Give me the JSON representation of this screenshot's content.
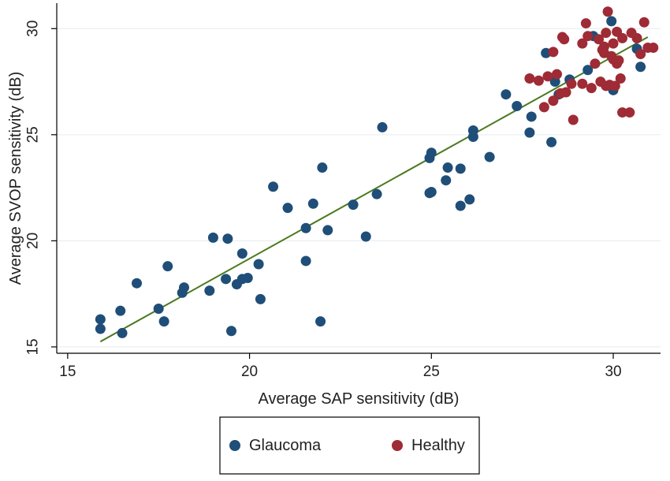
{
  "chart_data": {
    "type": "scatter",
    "title": "",
    "xlabel": "Average SAP sensitivity (dB)",
    "ylabel": "Average SVOP sensitivity (dB)",
    "xlim": [
      14.7,
      31.3
    ],
    "ylim": [
      14.7,
      31.2
    ],
    "xticks": [
      15,
      20,
      25,
      30
    ],
    "yticks": [
      15,
      20,
      25,
      30
    ],
    "grid": "horizontal",
    "legend": "bottom",
    "series": [
      {
        "name": "Glaucoma",
        "color": "#1f4e79",
        "points": [
          [
            15.9,
            16.3
          ],
          [
            15.9,
            15.85
          ],
          [
            16.45,
            16.7
          ],
          [
            16.5,
            15.65
          ],
          [
            16.9,
            18.0
          ],
          [
            17.5,
            16.8
          ],
          [
            17.65,
            16.2
          ],
          [
            17.75,
            18.8
          ],
          [
            18.15,
            17.55
          ],
          [
            18.2,
            17.8
          ],
          [
            18.9,
            17.65
          ],
          [
            19.0,
            20.15
          ],
          [
            19.35,
            18.2
          ],
          [
            19.4,
            20.1
          ],
          [
            19.5,
            15.75
          ],
          [
            19.65,
            17.95
          ],
          [
            19.8,
            18.2
          ],
          [
            19.8,
            19.4
          ],
          [
            19.95,
            18.25
          ],
          [
            20.25,
            18.9
          ],
          [
            20.3,
            17.25
          ],
          [
            20.65,
            22.55
          ],
          [
            21.05,
            21.55
          ],
          [
            21.55,
            20.6
          ],
          [
            21.55,
            19.05
          ],
          [
            21.75,
            21.75
          ],
          [
            21.95,
            16.2
          ],
          [
            22.0,
            23.45
          ],
          [
            22.15,
            20.5
          ],
          [
            22.85,
            21.7
          ],
          [
            23.2,
            20.2
          ],
          [
            23.5,
            22.2
          ],
          [
            23.65,
            25.35
          ],
          [
            24.95,
            23.9
          ],
          [
            24.95,
            22.25
          ],
          [
            25.0,
            22.3
          ],
          [
            25.0,
            24.15
          ],
          [
            25.4,
            22.85
          ],
          [
            25.45,
            23.45
          ],
          [
            25.8,
            23.4
          ],
          [
            25.8,
            21.65
          ],
          [
            26.05,
            21.95
          ],
          [
            26.15,
            24.9
          ],
          [
            26.15,
            25.2
          ],
          [
            26.6,
            23.95
          ],
          [
            27.05,
            26.9
          ],
          [
            27.35,
            26.35
          ],
          [
            27.7,
            25.1
          ],
          [
            27.75,
            25.85
          ],
          [
            28.15,
            28.85
          ],
          [
            28.3,
            24.65
          ],
          [
            28.4,
            27.5
          ],
          [
            28.5,
            26.9
          ],
          [
            28.8,
            27.6
          ],
          [
            29.3,
            28.05
          ],
          [
            29.45,
            29.65
          ],
          [
            29.95,
            30.35
          ],
          [
            30.0,
            27.1
          ],
          [
            30.65,
            29.05
          ],
          [
            30.75,
            28.2
          ]
        ]
      },
      {
        "name": "Healthy",
        "color": "#9e2b35",
        "points": [
          [
            27.7,
            27.65
          ],
          [
            27.95,
            27.55
          ],
          [
            28.1,
            26.3
          ],
          [
            28.2,
            27.75
          ],
          [
            28.35,
            28.9
          ],
          [
            28.35,
            26.6
          ],
          [
            28.45,
            27.85
          ],
          [
            28.55,
            26.95
          ],
          [
            28.6,
            29.6
          ],
          [
            28.65,
            29.5
          ],
          [
            28.7,
            27.0
          ],
          [
            28.85,
            27.4
          ],
          [
            28.9,
            25.7
          ],
          [
            29.15,
            29.3
          ],
          [
            29.15,
            27.4
          ],
          [
            29.25,
            30.25
          ],
          [
            29.3,
            29.65
          ],
          [
            29.4,
            27.2
          ],
          [
            29.5,
            28.35
          ],
          [
            29.6,
            29.5
          ],
          [
            29.65,
            27.5
          ],
          [
            29.7,
            29.0
          ],
          [
            29.75,
            29.15
          ],
          [
            29.75,
            28.85
          ],
          [
            29.8,
            27.3
          ],
          [
            29.8,
            29.8
          ],
          [
            29.85,
            30.8
          ],
          [
            29.9,
            27.35
          ],
          [
            29.95,
            28.7
          ],
          [
            30.0,
            29.3
          ],
          [
            30.0,
            28.55
          ],
          [
            30.05,
            27.3
          ],
          [
            30.1,
            29.85
          ],
          [
            30.1,
            28.35
          ],
          [
            30.15,
            28.5
          ],
          [
            30.2,
            27.65
          ],
          [
            30.25,
            29.55
          ],
          [
            30.25,
            26.05
          ],
          [
            30.45,
            26.05
          ],
          [
            30.5,
            29.8
          ],
          [
            30.65,
            29.55
          ],
          [
            30.75,
            28.8
          ],
          [
            30.85,
            30.3
          ],
          [
            30.95,
            29.1
          ],
          [
            31.1,
            29.1
          ]
        ]
      }
    ],
    "fit_line": {
      "color": "#4a7a1e",
      "points": [
        [
          15.9,
          15.25
        ],
        [
          30.95,
          29.6
        ]
      ]
    }
  }
}
